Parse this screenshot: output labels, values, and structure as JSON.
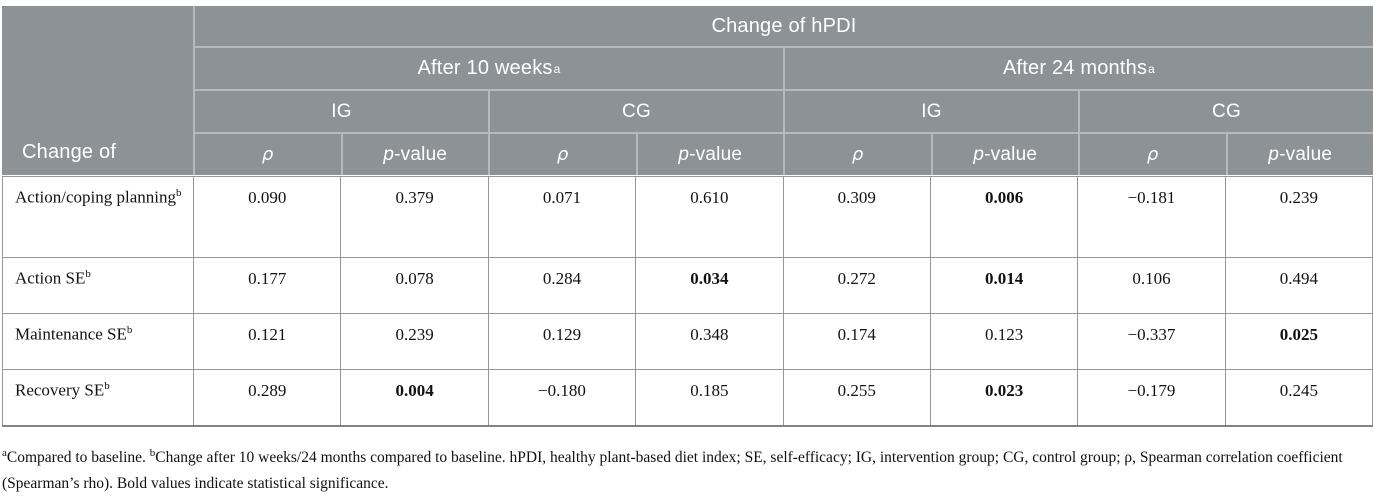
{
  "colors": {
    "header_bg": "#8d9296",
    "header_separator": "#b6babc",
    "header_text": "#ffffff",
    "cell_border": "#94989b",
    "body_text": "#111111"
  },
  "header": {
    "row_header": "Change of",
    "title": "Change of hPDI",
    "timepoints": [
      {
        "label": "After 10 weeks",
        "sup": "a"
      },
      {
        "label": "After 24 months",
        "sup": "a"
      }
    ],
    "groups": [
      {
        "label": "IG"
      },
      {
        "label": "CG"
      },
      {
        "label": "IG"
      },
      {
        "label": "CG"
      }
    ],
    "stat": {
      "rho": "ρ",
      "p_italic": "p",
      "p_rest": "-value"
    }
  },
  "rows": [
    {
      "label": "Action/coping planning",
      "sup": "b",
      "values": [
        {
          "v": "0.090"
        },
        {
          "v": "0.379"
        },
        {
          "v": "0.071"
        },
        {
          "v": "0.610"
        },
        {
          "v": "0.309"
        },
        {
          "v": "0.006",
          "bold": true
        },
        {
          "v": "−0.181"
        },
        {
          "v": "0.239"
        }
      ]
    },
    {
      "label": "Action SE",
      "sup": "b",
      "values": [
        {
          "v": "0.177"
        },
        {
          "v": "0.078"
        },
        {
          "v": "0.284"
        },
        {
          "v": "0.034",
          "bold": true
        },
        {
          "v": "0.272"
        },
        {
          "v": "0.014",
          "bold": true
        },
        {
          "v": "0.106"
        },
        {
          "v": "0.494"
        }
      ]
    },
    {
      "label": "Maintenance SE",
      "sup": "b",
      "values": [
        {
          "v": "0.121"
        },
        {
          "v": "0.239"
        },
        {
          "v": "0.129"
        },
        {
          "v": "0.348"
        },
        {
          "v": "0.174"
        },
        {
          "v": "0.123"
        },
        {
          "v": "−0.337"
        },
        {
          "v": "0.025",
          "bold": true
        }
      ]
    },
    {
      "label": "Recovery SE",
      "sup": "b",
      "values": [
        {
          "v": "0.289"
        },
        {
          "v": "0.004",
          "bold": true
        },
        {
          "v": "−0.180"
        },
        {
          "v": "0.185"
        },
        {
          "v": "0.255"
        },
        {
          "v": "0.023",
          "bold": true
        },
        {
          "v": "−0.179"
        },
        {
          "v": "0.245"
        }
      ]
    }
  ],
  "footnote": {
    "parts": [
      {
        "sup": "a",
        "text": "Compared to baseline. "
      },
      {
        "sup": "b",
        "text": "Change after 10 weeks/24 months compared to baseline. hPDI, healthy plant-based diet index; SE, self-efficacy; IG, intervention group; CG, control group; ρ, Spearman correlation coefficient (Spearman’s rho). Bold values indicate statistical significance."
      }
    ]
  }
}
